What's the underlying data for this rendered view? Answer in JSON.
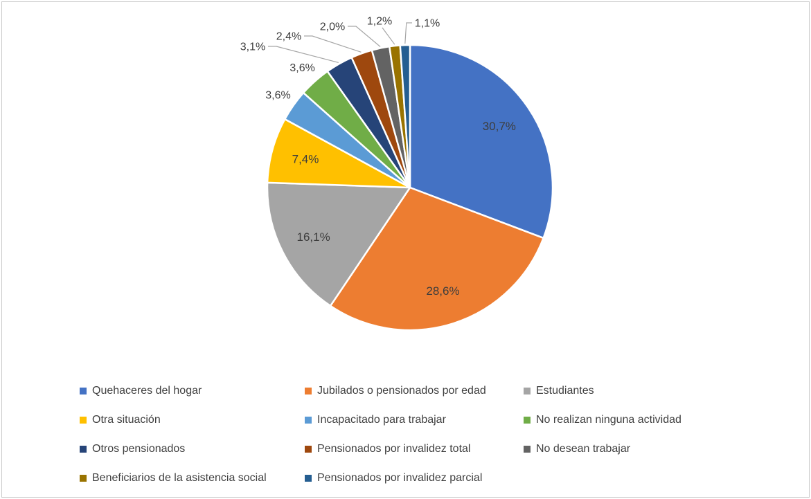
{
  "chart_data": {
    "type": "pie",
    "title": "",
    "decimal_separator": ",",
    "legend_position": "bottom",
    "start_angle_deg": 0,
    "direction": "clockwise",
    "slices": [
      {
        "label": "Quehaceres del hogar",
        "value": 30.7,
        "display": "30,7%",
        "color": "#4472C4"
      },
      {
        "label": "Jubilados o pensionados por edad",
        "value": 28.6,
        "display": "28,6%",
        "color": "#ED7D31"
      },
      {
        "label": "Estudiantes",
        "value": 16.1,
        "display": "16,1%",
        "color": "#A5A5A5"
      },
      {
        "label": "Otra situación",
        "value": 7.4,
        "display": "7,4%",
        "color": "#FFC000"
      },
      {
        "label": "Incapacitado para trabajar",
        "value": 3.6,
        "display": "3,6%",
        "color": "#5B9BD5"
      },
      {
        "label": "No realizan ninguna actividad",
        "value": 3.6,
        "display": "3,6%",
        "color": "#70AD47"
      },
      {
        "label": "Otros pensionados",
        "value": 3.1,
        "display": "3,1%",
        "color": "#264478"
      },
      {
        "label": "Pensionados por invalidez total",
        "value": 2.4,
        "display": "2,4%",
        "color": "#9E480E"
      },
      {
        "label": "No desean trabajar",
        "value": 2.0,
        "display": "2,0%",
        "color": "#636363"
      },
      {
        "label": "Beneficiarios de la asistencia social",
        "value": 1.2,
        "display": "1,2%",
        "color": "#997300"
      },
      {
        "label": "Pensionados por invalidez parcial",
        "value": 1.1,
        "display": "1,1%",
        "color": "#255E91"
      }
    ]
  }
}
